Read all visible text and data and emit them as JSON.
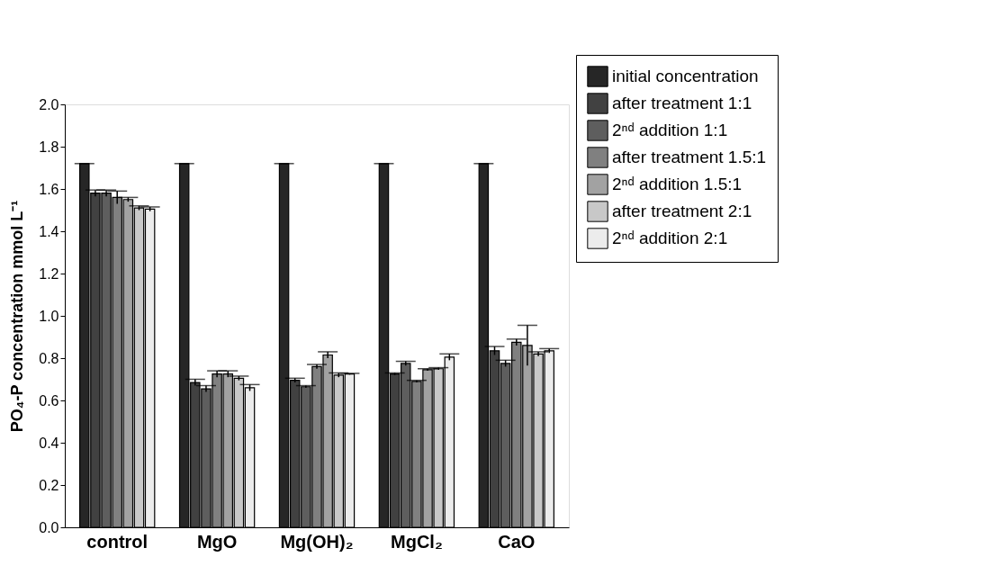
{
  "chart_data": {
    "type": "bar",
    "ylabel": "PO₄-P concentration mmol L⁻¹",
    "categories": [
      "control",
      "MgO",
      "Mg(OH)₂",
      "MgCl₂",
      "CaO"
    ],
    "series": [
      {
        "name": "initial concentration",
        "color": "#262626",
        "values": [
          1.72,
          1.72,
          1.72,
          1.72,
          1.72
        ],
        "errors": [
          0,
          0,
          0,
          0,
          0
        ]
      },
      {
        "name": "after treatment 1:1",
        "color": "#414141",
        "values": [
          1.58,
          0.685,
          0.695,
          0.725,
          0.835
        ],
        "errors": [
          0.015,
          0.015,
          0.01,
          0.005,
          0.02
        ]
      },
      {
        "name": "2ⁿᵈ addition 1:1",
        "color": "#5e5e5e",
        "values": [
          1.58,
          0.655,
          0.665,
          0.775,
          0.775
        ],
        "errors": [
          0.015,
          0.015,
          0.005,
          0.01,
          0.015
        ]
      },
      {
        "name": "after treatment 1.5:1",
        "color": "#808080",
        "values": [
          1.56,
          0.725,
          0.76,
          0.69,
          0.875
        ],
        "errors": [
          0.03,
          0.015,
          0.01,
          0.005,
          0.015
        ]
      },
      {
        "name": "2ⁿᵈ addition 1.5:1",
        "color": "#a2a2a2",
        "values": [
          1.55,
          0.725,
          0.815,
          0.745,
          0.86
        ],
        "errors": [
          0.01,
          0.015,
          0.015,
          0.005,
          0.095
        ]
      },
      {
        "name": "after treatment 2:1",
        "color": "#c8c8c8",
        "values": [
          1.51,
          0.705,
          0.72,
          0.75,
          0.82
        ],
        "errors": [
          0.01,
          0.01,
          0.01,
          0.005,
          0.01
        ]
      },
      {
        "name": "2ⁿᵈ addition 2:1",
        "color": "#ececec",
        "values": [
          1.505,
          0.66,
          0.725,
          0.805,
          0.835
        ],
        "errors": [
          0.01,
          0.015,
          0.003,
          0.015,
          0.01
        ]
      }
    ],
    "ylim": [
      0,
      2.0
    ],
    "yticks": [
      {
        "value": 0,
        "label": "0.0"
      },
      {
        "value": 0.2,
        "label": "0.2"
      },
      {
        "value": 0.4,
        "label": "0.4"
      },
      {
        "value": 0.6,
        "label": "0.6"
      },
      {
        "value": 0.8,
        "label": "0.8"
      },
      {
        "value": 1.0,
        "label": "1.0"
      },
      {
        "value": 1.2,
        "label": "1.2"
      },
      {
        "value": 1.4,
        "label": "1.4"
      },
      {
        "value": 1.6,
        "label": "1.6"
      },
      {
        "value": 1.8,
        "label": "1.8"
      },
      {
        "value": 2.0,
        "label": "2.0"
      }
    ],
    "grid": false,
    "legend": "top right"
  }
}
